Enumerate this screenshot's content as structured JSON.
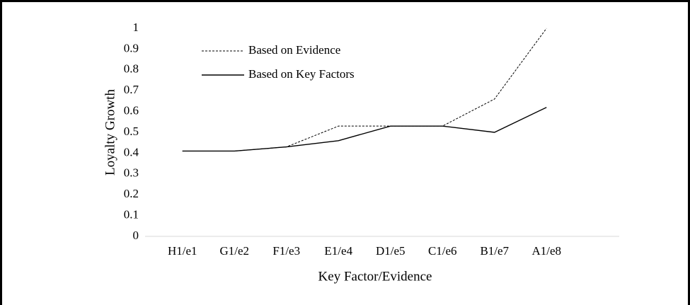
{
  "chart_data": {
    "type": "line",
    "x_label": "Key Factor/Evidence",
    "y_label": "Loyalty Growth",
    "categories": [
      "H1/e1",
      "G1/e2",
      "F1/e3",
      "E1/e4",
      "D1/e5",
      "C1/e6",
      "B1/e7",
      "A1/e8"
    ],
    "series": [
      {
        "name": "Based on Evidence",
        "color": "#000000",
        "line_style": "dashed",
        "values": [
          0.41,
          0.41,
          0.43,
          0.53,
          0.53,
          0.53,
          0.66,
          1.0
        ]
      },
      {
        "name": "Based on Key Factors",
        "color": "#000000",
        "line_style": "solid",
        "values": [
          0.41,
          0.41,
          0.43,
          0.46,
          0.53,
          0.53,
          0.5,
          0.62
        ]
      }
    ],
    "ylim": [
      0,
      1
    ],
    "yticks": [
      0,
      0.1,
      0.2,
      0.3,
      0.4,
      0.5,
      0.6,
      0.7,
      0.8,
      0.9,
      1
    ],
    "grid": false,
    "legend": "top-left"
  }
}
